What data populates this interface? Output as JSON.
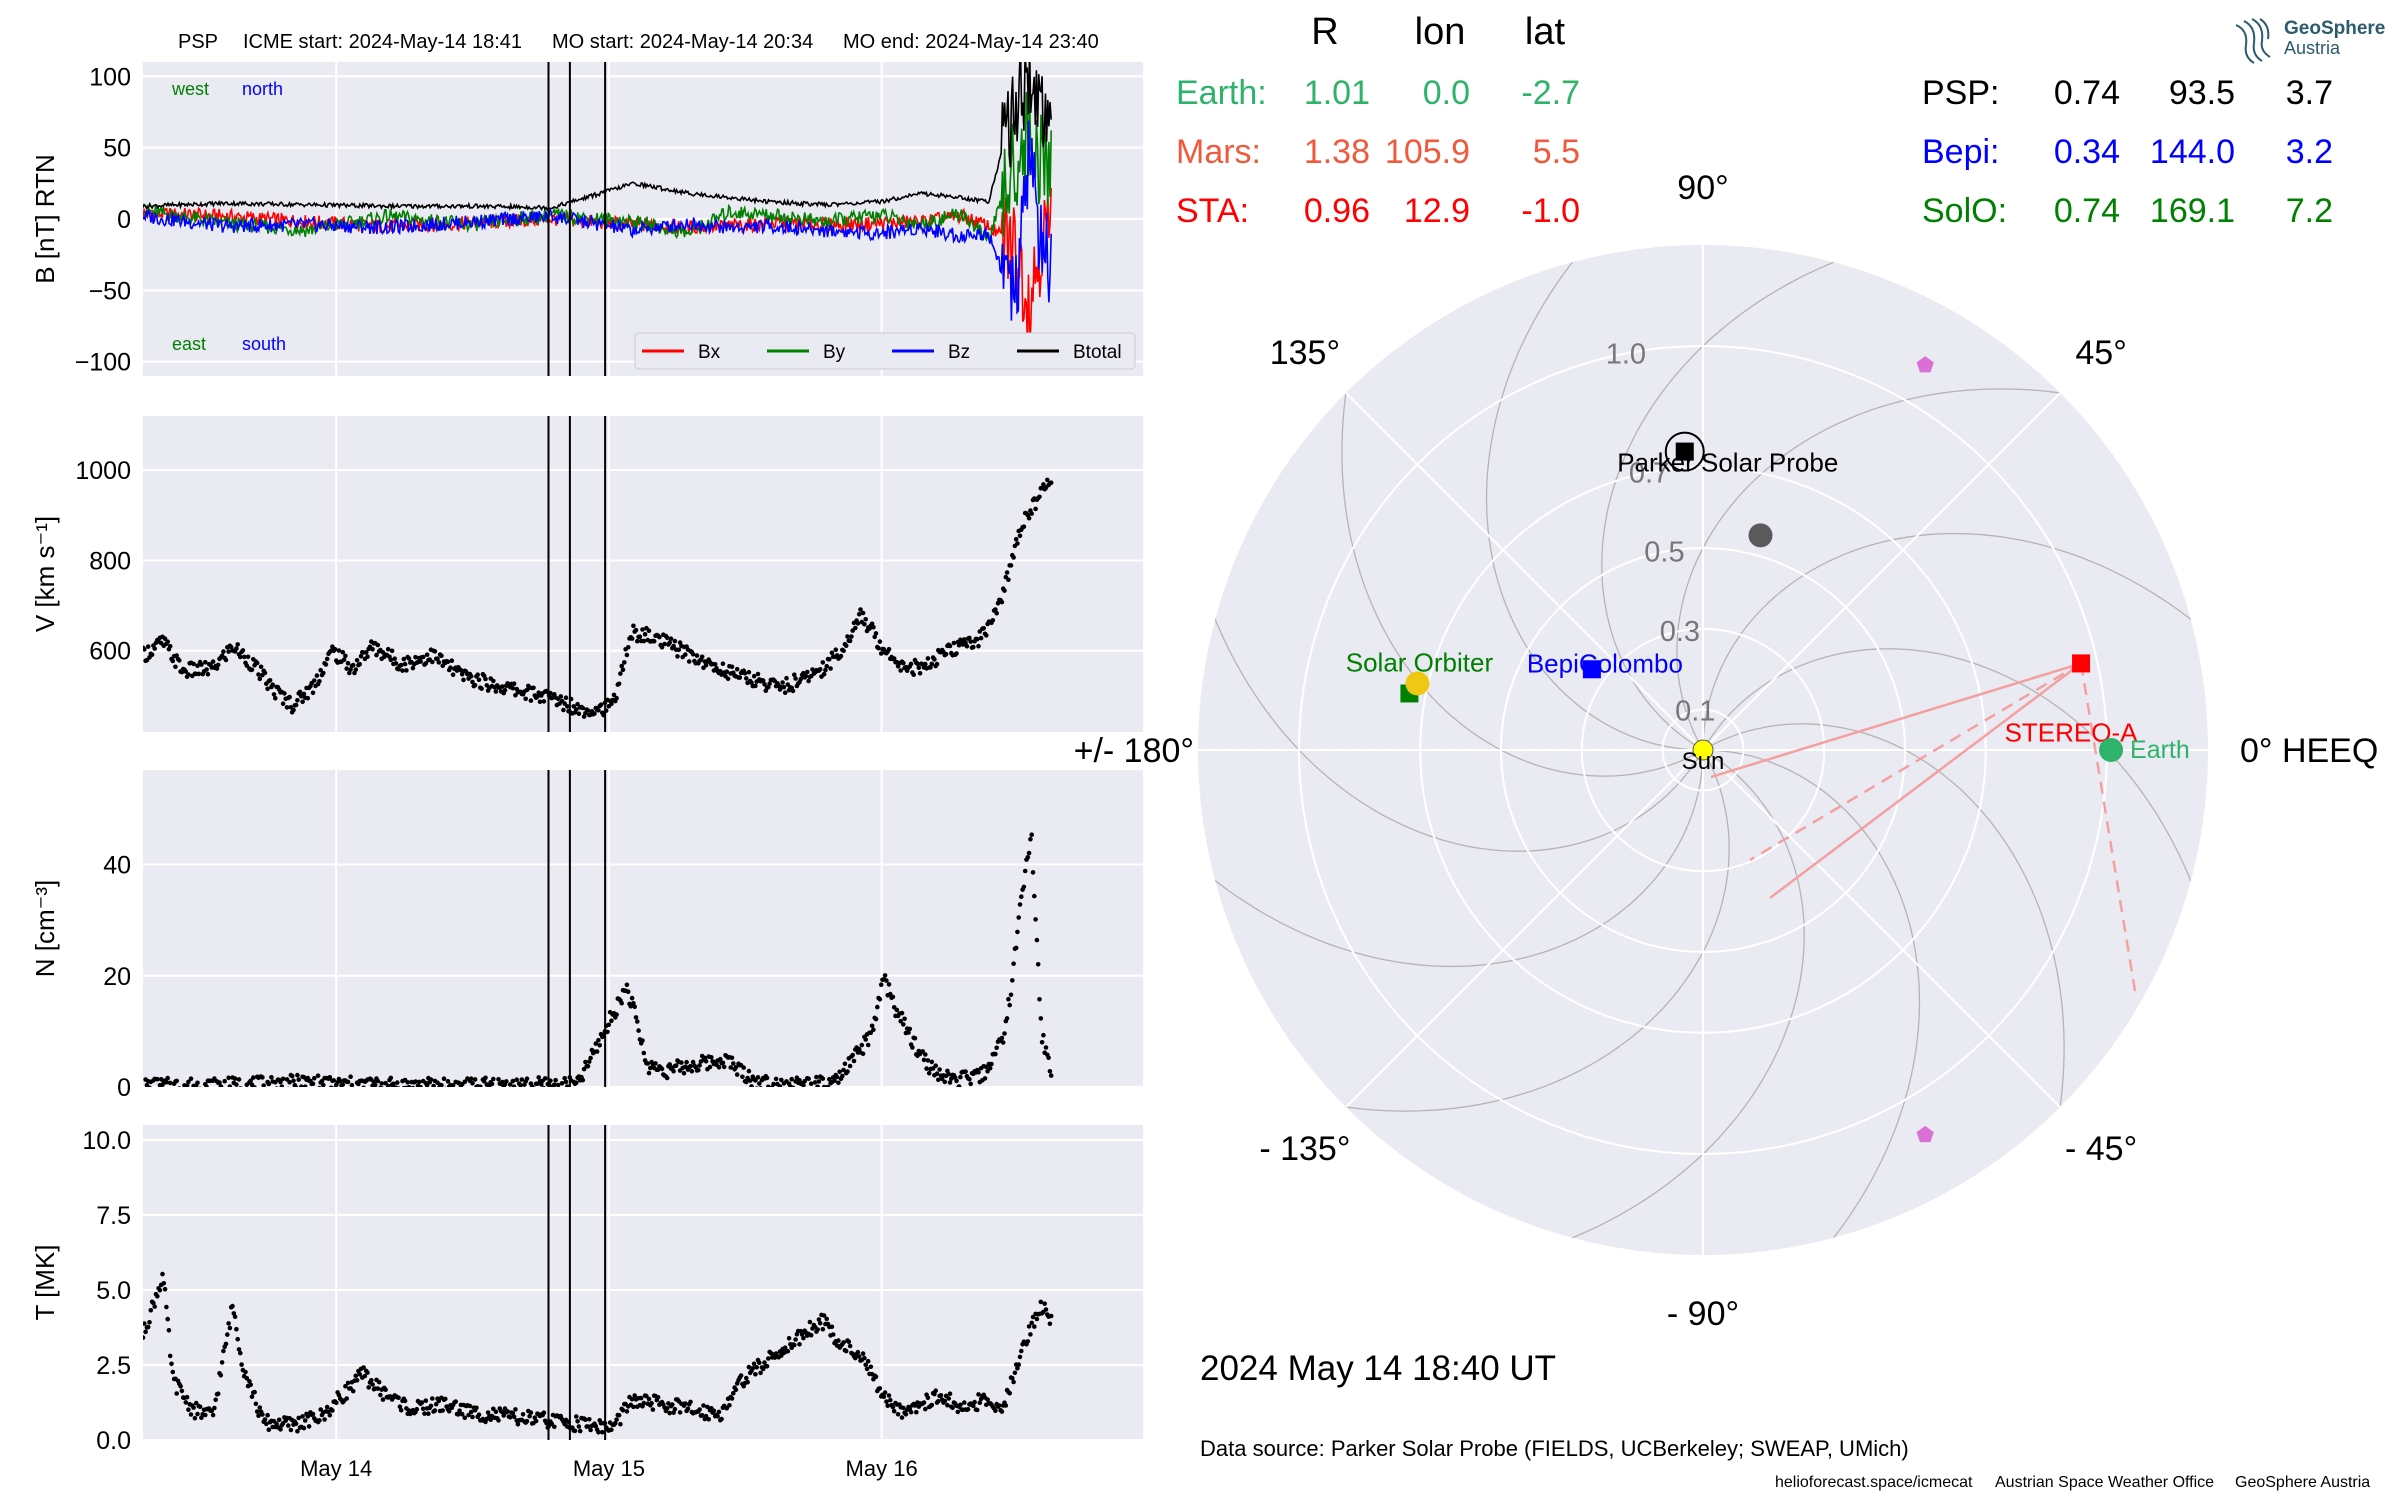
{
  "header": {
    "spacecraft": "PSP",
    "icme_start": "ICME start: 2024-May-14 18:41",
    "mo_start": "MO start: 2024-May-14 20:34",
    "mo_end": "MO end: 2024-May-14 23:40"
  },
  "logo": {
    "name": "GeoSphere",
    "sub": "Austria"
  },
  "footer": {
    "datetime": "2024 May 14  18:40 UT",
    "source": "Data source: Parker Solar Probe (FIELDS, UCBerkeley; SWEAP, UMich)",
    "credits": [
      "helioforecast.space/icmecat",
      "Austrian Space Weather Office",
      "GeoSphere Austria"
    ]
  },
  "colors": {
    "earth": "#2eb36b",
    "mars": "#f05a3c",
    "sta": "#ff0000",
    "psp": "#000000",
    "bepi": "#0000ff",
    "solo": "#008000",
    "bx": "#ff0000",
    "by": "#008000",
    "bz": "#0000ff",
    "btotal": "#000000",
    "panel_bg": "#eaeaf2",
    "grid": "#ffffff"
  },
  "position_table": {
    "columns": [
      "R",
      "lon",
      "lat"
    ],
    "left": [
      {
        "name": "Earth:",
        "R": "1.01",
        "lon": "0.0",
        "lat": "-2.7",
        "color": "#2eb36b"
      },
      {
        "name": "Mars:",
        "R": "1.38",
        "lon": "105.9",
        "lat": "5.5",
        "color": "#f05a3c"
      },
      {
        "name": "STA:",
        "R": "0.96",
        "lon": "12.9",
        "lat": "-1.0",
        "color": "#ff0000"
      }
    ],
    "right": [
      {
        "name": "PSP:",
        "R": "0.74",
        "lon": "93.5",
        "lat": "3.7",
        "color": "#000000"
      },
      {
        "name": "Bepi:",
        "R": "0.34",
        "lon": "144.0",
        "lat": "3.2",
        "color": "#0000ff"
      },
      {
        "name": "SolO:",
        "R": "0.74",
        "lon": "169.1",
        "lat": "7.2",
        "color": "#008000"
      }
    ]
  },
  "chart_data": [
    {
      "type": "line",
      "ylabel": "B [nT] RTN",
      "ylim": [
        -110,
        110
      ],
      "yticks": [
        "100",
        "50",
        "0",
        "−50",
        "−100"
      ],
      "ytick_values": [
        100,
        50,
        0,
        -50,
        -100
      ],
      "x_range_days": [
        "2024-05-13 07:00",
        "2024-05-16 23:00"
      ],
      "xticks": [
        "May 14",
        "May 15",
        "May 16"
      ],
      "event_lines": [
        "2024-05-14 18:41",
        "2024-05-14 20:34",
        "2024-05-14 23:40"
      ],
      "annotations": {
        "top_left": [
          "west",
          "north"
        ],
        "bottom_left": [
          "east",
          "south"
        ]
      },
      "legend": [
        "Bx",
        "By",
        "Bz",
        "Btotal"
      ],
      "legend_position": "lower-right",
      "series": [
        {
          "name": "Bx",
          "values": [
            [
              0.0,
              4
            ],
            [
              0.3,
              2
            ],
            [
              0.6,
              -2
            ],
            [
              0.9,
              -5
            ],
            [
              1.2,
              -3
            ],
            [
              1.5,
              0
            ],
            [
              1.8,
              -4
            ],
            [
              2.0,
              -6
            ],
            [
              2.15,
              -5
            ],
            [
              2.3,
              -3
            ],
            [
              2.5,
              -4
            ],
            [
              2.7,
              -3
            ],
            [
              2.85,
              -2
            ],
            [
              3.0,
              2
            ],
            [
              3.1,
              -5
            ],
            [
              3.2,
              -20
            ],
            [
              3.25,
              -55
            ],
            [
              3.3,
              -10
            ]
          ]
        },
        {
          "name": "By",
          "values": [
            [
              0.0,
              6
            ],
            [
              0.3,
              -3
            ],
            [
              0.6,
              -8
            ],
            [
              0.9,
              2
            ],
            [
              1.2,
              -4
            ],
            [
              1.5,
              3
            ],
            [
              1.8,
              -2
            ],
            [
              2.0,
              -10
            ],
            [
              2.15,
              5
            ],
            [
              2.3,
              3
            ],
            [
              2.5,
              -2
            ],
            [
              2.7,
              3
            ],
            [
              2.85,
              -4
            ],
            [
              3.0,
              4
            ],
            [
              3.1,
              -15
            ],
            [
              3.2,
              40
            ],
            [
              3.25,
              60
            ],
            [
              3.3,
              35
            ]
          ]
        },
        {
          "name": "Bz",
          "values": [
            [
              0.0,
              2
            ],
            [
              0.3,
              -5
            ],
            [
              0.6,
              -4
            ],
            [
              0.9,
              -6
            ],
            [
              1.2,
              -2
            ],
            [
              1.5,
              2
            ],
            [
              1.8,
              -8
            ],
            [
              2.0,
              -3
            ],
            [
              2.15,
              -6
            ],
            [
              2.3,
              -5
            ],
            [
              2.5,
              -8
            ],
            [
              2.7,
              -10
            ],
            [
              2.85,
              -6
            ],
            [
              3.0,
              -12
            ],
            [
              3.1,
              -10
            ],
            [
              3.2,
              -60
            ],
            [
              3.25,
              50
            ],
            [
              3.3,
              -30
            ]
          ]
        },
        {
          "name": "Btotal",
          "values": [
            [
              0.0,
              9
            ],
            [
              0.3,
              11
            ],
            [
              0.6,
              10
            ],
            [
              0.9,
              9
            ],
            [
              1.2,
              9
            ],
            [
              1.5,
              8
            ],
            [
              1.8,
              25
            ],
            [
              2.0,
              18
            ],
            [
              2.15,
              15
            ],
            [
              2.3,
              12
            ],
            [
              2.5,
              10
            ],
            [
              2.7,
              12
            ],
            [
              2.85,
              18
            ],
            [
              3.0,
              15
            ],
            [
              3.1,
              12
            ],
            [
              3.2,
              85
            ],
            [
              3.25,
              100
            ],
            [
              3.3,
              75
            ]
          ]
        }
      ]
    },
    {
      "type": "scatter",
      "ylabel": "V [km s⁻¹]",
      "ylim": [
        420,
        1120
      ],
      "yticks": [
        "1000",
        "800",
        "600"
      ],
      "ytick_values": [
        1000,
        800,
        600
      ],
      "x_range_days": [
        "2024-05-13 07:00",
        "2024-05-16 23:00"
      ],
      "xticks": [
        "May 14",
        "May 15",
        "May 16"
      ],
      "series": [
        {
          "name": "",
          "values": [
            [
              0.0,
              590
            ],
            [
              0.1,
              620
            ],
            [
              0.2,
              555
            ],
            [
              0.35,
              560
            ],
            [
              0.45,
              610
            ],
            [
              0.55,
              570
            ],
            [
              0.65,
              515
            ],
            [
              0.75,
              480
            ],
            [
              0.85,
              520
            ],
            [
              0.95,
              600
            ],
            [
              1.05,
              560
            ],
            [
              1.15,
              610
            ],
            [
              1.3,
              570
            ],
            [
              1.45,
              590
            ],
            [
              1.6,
              545
            ],
            [
              1.75,
              525
            ],
            [
              1.9,
              510
            ],
            [
              2.05,
              495
            ],
            [
              2.2,
              470
            ],
            [
              2.35,
              475
            ],
            [
              2.45,
              640
            ],
            [
              2.55,
              630
            ],
            [
              2.65,
              610
            ],
            [
              2.75,
              590
            ],
            [
              2.85,
              565
            ],
            [
              3.0,
              545
            ],
            [
              3.1,
              530
            ],
            [
              3.2,
              520
            ],
            [
              3.3,
              535
            ],
            [
              3.4,
              560
            ],
            [
              3.5,
              600
            ],
            [
              3.6,
              680
            ],
            [
              3.7,
              610
            ],
            [
              3.8,
              570
            ],
            [
              3.9,
              560
            ],
            [
              4.0,
              590
            ],
            [
              4.1,
              610
            ],
            [
              4.2,
              630
            ],
            [
              4.3,
              710
            ],
            [
              4.4,
              880
            ],
            [
              4.5,
              950
            ],
            [
              4.55,
              980
            ]
          ]
        }
      ]
    },
    {
      "type": "scatter",
      "ylabel": "N [cm⁻³]",
      "ylim": [
        0,
        57
      ],
      "yticks": [
        "40",
        "20",
        "0"
      ],
      "ytick_values": [
        40,
        20,
        0
      ],
      "x_range_days": [
        "2024-05-13 07:00",
        "2024-05-16 23:00"
      ],
      "xticks": [
        "May 14",
        "May 15",
        "May 16"
      ],
      "series": [
        {
          "name": "",
          "values": [
            [
              0.0,
              0.2
            ],
            [
              0.4,
              0.3
            ],
            [
              0.6,
              0.5
            ],
            [
              0.8,
              0.8
            ],
            [
              1.0,
              0.5
            ],
            [
              1.3,
              0.3
            ],
            [
              1.6,
              0.2
            ],
            [
              1.9,
              0.3
            ],
            [
              2.2,
              0.3
            ],
            [
              2.45,
              18
            ],
            [
              2.5,
              12
            ],
            [
              2.55,
              4
            ],
            [
              2.65,
              3
            ],
            [
              2.8,
              4
            ],
            [
              2.95,
              5
            ],
            [
              3.1,
              1
            ],
            [
              3.3,
              0.5
            ],
            [
              3.5,
              0.5
            ],
            [
              3.6,
              5
            ],
            [
              3.7,
              10
            ],
            [
              3.75,
              20
            ],
            [
              3.8,
              15
            ],
            [
              3.9,
              8
            ],
            [
              4.0,
              3
            ],
            [
              4.1,
              1
            ],
            [
              4.25,
              2
            ],
            [
              4.35,
              8
            ],
            [
              4.4,
              18
            ],
            [
              4.45,
              35
            ],
            [
              4.5,
              45
            ],
            [
              4.55,
              10
            ],
            [
              4.6,
              2
            ]
          ]
        }
      ]
    },
    {
      "type": "scatter",
      "ylabel": "T [MK]",
      "ylim": [
        0,
        10.5
      ],
      "yticks": [
        "10.0",
        "7.5",
        "5.0",
        "2.5",
        "0.0"
      ],
      "ytick_values": [
        10,
        7.5,
        5,
        2.5,
        0
      ],
      "x_range_days": [
        "2024-05-13 07:00",
        "2024-05-16 23:00"
      ],
      "xticks": [
        "May 14",
        "May 15",
        "May 16"
      ],
      "series": [
        {
          "name": "",
          "values": [
            [
              0.0,
              3.5
            ],
            [
              0.1,
              5.5
            ],
            [
              0.15,
              2.0
            ],
            [
              0.25,
              1.0
            ],
            [
              0.35,
              0.8
            ],
            [
              0.45,
              4.5
            ],
            [
              0.5,
              2.5
            ],
            [
              0.6,
              0.6
            ],
            [
              0.75,
              0.5
            ],
            [
              0.9,
              0.8
            ],
            [
              1.0,
              1.5
            ],
            [
              1.1,
              2.2
            ],
            [
              1.2,
              1.6
            ],
            [
              1.35,
              1.0
            ],
            [
              1.5,
              1.2
            ],
            [
              1.65,
              0.9
            ],
            [
              1.8,
              0.8
            ],
            [
              1.95,
              0.7
            ],
            [
              2.1,
              0.6
            ],
            [
              2.25,
              0.5
            ],
            [
              2.35,
              0.4
            ],
            [
              2.45,
              1.3
            ],
            [
              2.6,
              1.2
            ],
            [
              2.75,
              1.0
            ],
            [
              2.9,
              0.9
            ],
            [
              3.0,
              2.0
            ],
            [
              3.1,
              2.5
            ],
            [
              3.2,
              3.0
            ],
            [
              3.3,
              3.5
            ],
            [
              3.4,
              4.0
            ],
            [
              3.5,
              3.2
            ],
            [
              3.6,
              2.8
            ],
            [
              3.7,
              1.5
            ],
            [
              3.8,
              1.0
            ],
            [
              3.9,
              1.2
            ],
            [
              4.0,
              1.5
            ],
            [
              4.1,
              1.0
            ],
            [
              4.2,
              1.3
            ],
            [
              4.3,
              0.9
            ],
            [
              4.4,
              3.0
            ],
            [
              4.5,
              4.5
            ],
            [
              4.55,
              4.0
            ]
          ]
        }
      ]
    },
    {
      "type": "polar",
      "angle_labels": [
        "90°",
        "45°",
        "0° HEEQ",
        "- 45°",
        "- 90°",
        "- 135°",
        "+/- 180°",
        "135°"
      ],
      "angle_values_deg": [
        90,
        45,
        0,
        -45,
        -90,
        -135,
        180,
        135
      ],
      "radial_ticks": [
        "0.1",
        "0.3",
        "0.5",
        "0.7",
        "1.0"
      ],
      "radial_values": [
        0.1,
        0.3,
        0.5,
        0.7,
        1.0
      ],
      "rmax": 1.25,
      "objects": [
        {
          "label": "Parker Solar Probe",
          "r": 0.74,
          "lon": 93.5,
          "color": "#000000",
          "marker": "square"
        },
        {
          "label": "BepiColombo",
          "r": 0.34,
          "lon": 144.0,
          "color": "#0000ff",
          "marker": "square"
        },
        {
          "label": "Solar Orbiter",
          "r": 0.74,
          "lon": 169.1,
          "color": "#008000",
          "marker": "square"
        },
        {
          "label": "STEREO-A",
          "r": 0.96,
          "lon": 12.9,
          "color": "#ff0000",
          "marker": "square"
        },
        {
          "label": "Earth",
          "r": 1.01,
          "lon": 0.0,
          "color": "#2eb36b",
          "marker": "circle"
        },
        {
          "label": "Sun",
          "r": 0.0,
          "lon": 0.0,
          "color": "#ffff00",
          "marker": "circle"
        },
        {
          "label": "",
          "r": 0.55,
          "lon": 75,
          "color": "#5a5a5a",
          "marker": "circle"
        },
        {
          "label": "",
          "r": 1.1,
          "lon": 60,
          "color": "#da70d6",
          "marker": "pentagon"
        },
        {
          "label": "",
          "r": 1.1,
          "lon": -60,
          "color": "#da70d6",
          "marker": "pentagon"
        }
      ]
    }
  ]
}
